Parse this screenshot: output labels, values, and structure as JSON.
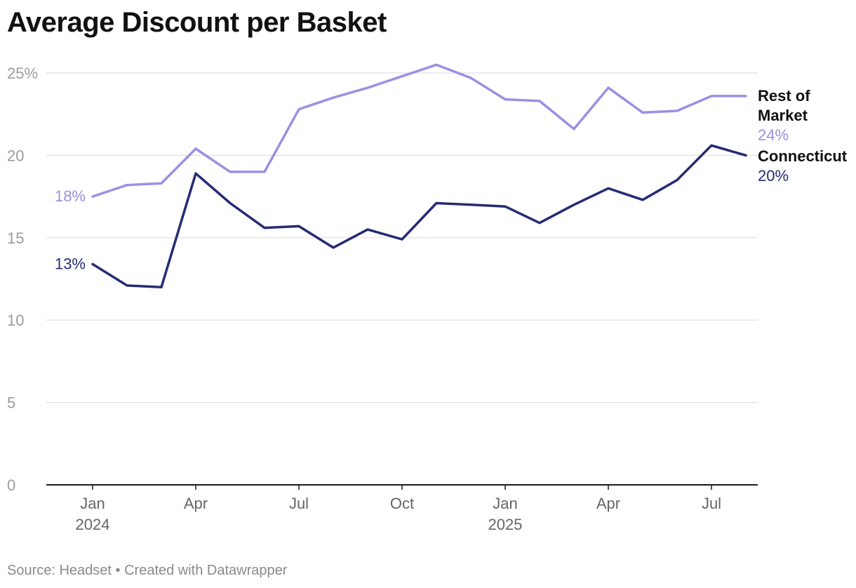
{
  "chart_data": {
    "type": "line",
    "title": "Average Discount per Basket",
    "xlabel": "",
    "ylabel": "",
    "ylim": [
      0,
      25
    ],
    "y_ticks": [
      {
        "value": 0,
        "label": "0"
      },
      {
        "value": 5,
        "label": "5"
      },
      {
        "value": 10,
        "label": "10"
      },
      {
        "value": 15,
        "label": "15"
      },
      {
        "value": 20,
        "label": "20"
      },
      {
        "value": 25,
        "label": "25%"
      }
    ],
    "x": [
      "2024-01",
      "2024-02",
      "2024-03",
      "2024-04",
      "2024-05",
      "2024-06",
      "2024-07",
      "2024-08",
      "2024-09",
      "2024-10",
      "2024-11",
      "2024-12",
      "2025-01",
      "2025-02",
      "2025-03",
      "2025-04",
      "2025-05",
      "2025-06",
      "2025-07",
      "2025-08"
    ],
    "x_ticks": [
      {
        "index": 0,
        "label": "Jan",
        "sublabel": "2024"
      },
      {
        "index": 3,
        "label": "Apr",
        "sublabel": ""
      },
      {
        "index": 6,
        "label": "Jul",
        "sublabel": ""
      },
      {
        "index": 9,
        "label": "Oct",
        "sublabel": ""
      },
      {
        "index": 12,
        "label": "Jan",
        "sublabel": "2025"
      },
      {
        "index": 15,
        "label": "Apr",
        "sublabel": ""
      },
      {
        "index": 18,
        "label": "Jul",
        "sublabel": ""
      }
    ],
    "grid": true,
    "series": [
      {
        "name": "Rest of Market",
        "name_lines": [
          "Rest of",
          "Market"
        ],
        "color": "#9a91e2",
        "start_label": "18%",
        "end_label": "24%",
        "values": [
          17.5,
          18.2,
          18.3,
          20.4,
          19.0,
          19.0,
          22.8,
          23.5,
          24.1,
          24.8,
          25.5,
          24.7,
          23.4,
          23.3,
          21.6,
          24.1,
          22.6,
          22.7,
          23.6,
          23.6
        ]
      },
      {
        "name": "Connecticut",
        "name_lines": [
          "Connecticut"
        ],
        "color": "#252b74",
        "start_label": "13%",
        "end_label": "20%",
        "values": [
          13.4,
          12.1,
          12.0,
          18.9,
          17.1,
          15.6,
          15.7,
          14.4,
          15.5,
          14.9,
          17.1,
          17.0,
          16.9,
          15.9,
          17.0,
          18.0,
          17.3,
          18.5,
          20.6,
          20.0
        ]
      }
    ]
  },
  "footer": {
    "text": "Source: Headset • Created with Datawrapper"
  }
}
